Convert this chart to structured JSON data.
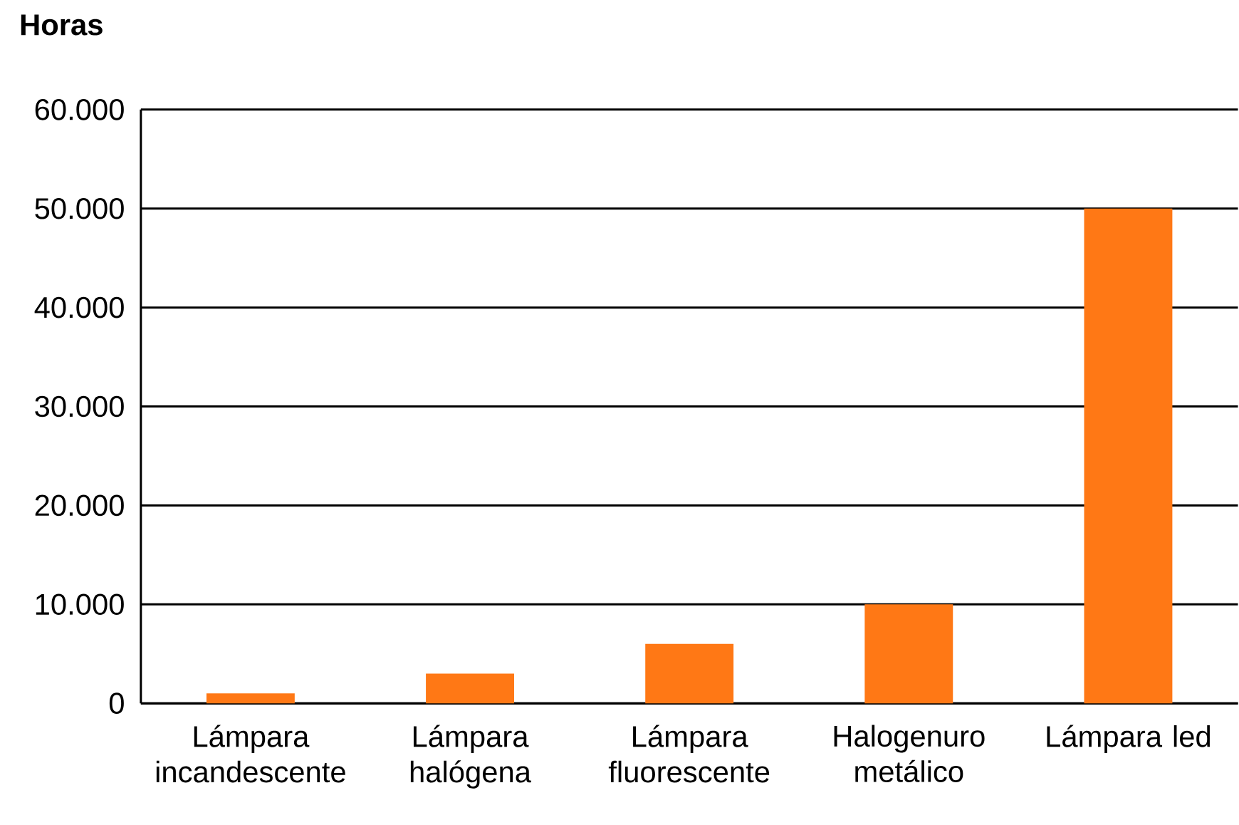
{
  "chart_data": {
    "type": "bar",
    "ylabel": "Horas",
    "categories": [
      "Lámpara incandescente",
      "Lámpara halógena",
      "Lámpara fluorescente",
      "Halogenuro metálico",
      "Lámpara led"
    ],
    "values": [
      1000,
      3000,
      6000,
      10000,
      50000
    ],
    "color": "#ff7815",
    "ylim": [
      0,
      60000
    ],
    "yticks": [
      {
        "value": 0,
        "label": "0"
      },
      {
        "value": 10000,
        "label": "10.000"
      },
      {
        "value": 20000,
        "label": "20.000"
      },
      {
        "value": 30000,
        "label": "30.000"
      },
      {
        "value": 40000,
        "label": "40.000"
      },
      {
        "value": 50000,
        "label": "50.000"
      },
      {
        "value": 60000,
        "label": "60.000"
      }
    ],
    "grid": "y"
  }
}
